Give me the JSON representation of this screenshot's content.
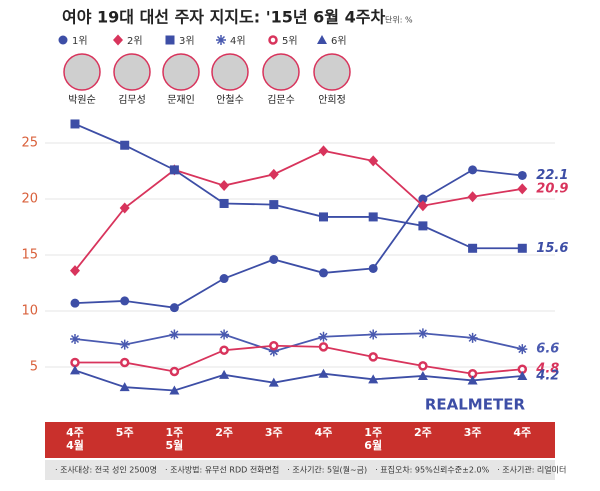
{
  "chart_data": {
    "type": "line",
    "title": "여야 19대 대선 주자 지지도: '15년 6월 4주차",
    "unit": "단위: %",
    "categories": [
      "4주\n4월",
      "5주",
      "1주\n5월",
      "2주",
      "3주",
      "4주",
      "1주\n6월",
      "2주",
      "3주",
      "4주"
    ],
    "series": [
      {
        "name": "1위",
        "candidate": "박원순",
        "color": "#3d4ea6",
        "marker": "circle",
        "values": [
          10.7,
          10.9,
          10.3,
          12.9,
          14.6,
          13.4,
          13.8,
          20.0,
          22.6,
          22.1
        ]
      },
      {
        "name": "2위",
        "candidate": "김무성",
        "color": "#d8345c",
        "marker": "diamond",
        "values": [
          13.6,
          19.2,
          22.6,
          21.2,
          22.2,
          24.3,
          23.4,
          19.4,
          20.2,
          20.9
        ]
      },
      {
        "name": "3위",
        "candidate": "문재인",
        "color": "#3d4ea6",
        "marker": "square",
        "values": [
          26.7,
          24.8,
          22.6,
          19.6,
          19.5,
          18.4,
          18.4,
          17.6,
          15.6,
          15.6
        ]
      },
      {
        "name": "4위",
        "candidate": "안철수",
        "color": "#4a5ab0",
        "marker": "asterisk",
        "values": [
          7.5,
          7.0,
          7.9,
          7.9,
          6.4,
          7.7,
          7.9,
          8.0,
          7.6,
          6.6
        ]
      },
      {
        "name": "5위",
        "candidate": "김문수",
        "color": "#d8345c",
        "marker": "ring",
        "values": [
          5.4,
          5.4,
          4.6,
          6.5,
          6.9,
          6.8,
          5.9,
          5.1,
          4.4,
          4.8
        ]
      },
      {
        "name": "6위",
        "candidate": "안희정",
        "color": "#3d4ea6",
        "marker": "triangle",
        "values": [
          4.7,
          3.2,
          2.9,
          4.3,
          3.6,
          4.4,
          3.9,
          4.2,
          3.8,
          4.2
        ]
      }
    ],
    "ylim": [
      2,
      27
    ],
    "yticks": [
      5,
      10,
      15,
      20,
      25
    ],
    "grid": true,
    "watermark": "REALMETER",
    "footer": [
      "· 조사대상: 전국 성인 2500명",
      "· 조사방법: 유무선 RDD 전화면접",
      "· 조사기간: 5일(월~금)",
      "· 표집오차: 95%신뢰수준±2.0%",
      "· 조사기관: 리얼미터"
    ]
  }
}
